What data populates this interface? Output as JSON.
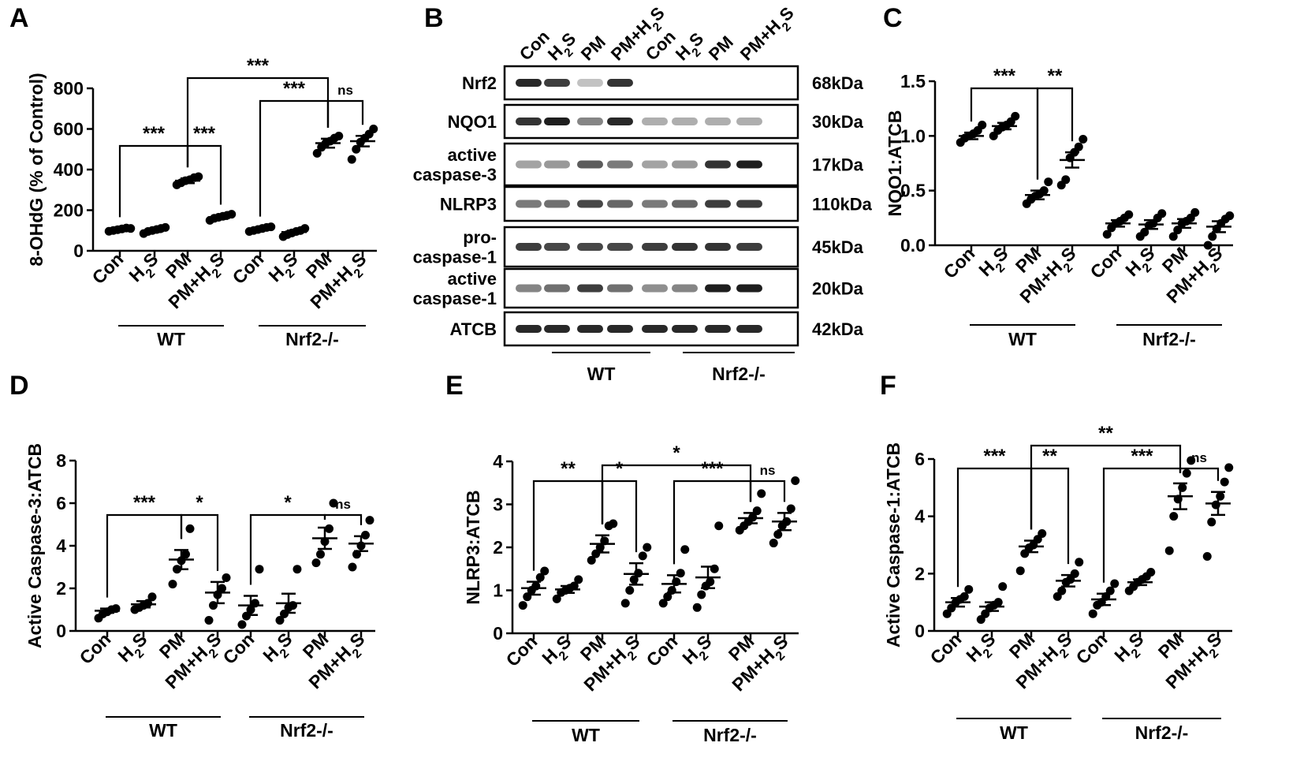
{
  "figure": {
    "groups": [
      "WT",
      "Nrf2-/-"
    ],
    "sample_order": [
      "Con",
      "H2S",
      "PM",
      "PM+H2S",
      "Con",
      "H2S",
      "PM",
      "PM+H2S"
    ]
  },
  "chart_data": [
    {
      "panel": "A",
      "type": "scatter",
      "ylabel": "8-OHdG (% of Control)",
      "ylim": [
        0,
        800
      ],
      "yticks": [
        0,
        200,
        400,
        600,
        800
      ],
      "categories": [
        "Con",
        "H2S",
        "PM",
        "PM+H2S",
        "Con",
        "H2S",
        "PM",
        "PM+H2S"
      ],
      "groups": [
        {
          "label": "WT",
          "from": 0,
          "to": 3
        },
        {
          "label": "Nrf2-/-",
          "from": 4,
          "to": 7
        }
      ],
      "means": [
        105,
        100,
        345,
        165,
        108,
        92,
        530,
        540
      ],
      "sem": [
        6,
        8,
        12,
        8,
        6,
        8,
        22,
        26
      ],
      "points": [
        [
          96,
          100,
          104,
          108,
          112,
          110
        ],
        [
          85,
          95,
          100,
          105,
          110,
          115
        ],
        [
          325,
          335,
          345,
          350,
          360,
          365
        ],
        [
          150,
          160,
          165,
          170,
          175,
          180
        ],
        [
          95,
          100,
          105,
          110,
          115,
          118
        ],
        [
          70,
          80,
          88,
          95,
          100,
          110
        ],
        [
          480,
          510,
          530,
          540,
          555,
          565
        ],
        [
          450,
          500,
          535,
          555,
          575,
          600
        ]
      ],
      "comparisons": [
        {
          "a": 0,
          "b": 2,
          "label": "***",
          "level": 0
        },
        {
          "a": 2,
          "b": 3,
          "label": "***",
          "level": 0
        },
        {
          "a": 4,
          "b": 6,
          "label": "***",
          "level": 1
        },
        {
          "a": 6,
          "b": 7,
          "label": "ns",
          "level": 1
        },
        {
          "a": 2,
          "b": 6,
          "label": "***",
          "level": 2
        }
      ]
    },
    {
      "panel": "C",
      "type": "scatter",
      "ylabel": "NQO1:ATCB",
      "ylim": [
        0,
        1.5
      ],
      "yticks": [
        "0.0",
        "0.5",
        "1.0",
        "1.5"
      ],
      "categories": [
        "Con",
        "H2S",
        "PM",
        "PM+H2S",
        "Con",
        "H2S",
        "PM",
        "PM+H2S"
      ],
      "groups": [
        {
          "label": "WT",
          "from": 0,
          "to": 3
        },
        {
          "label": "Nrf2-/-",
          "from": 4,
          "to": 7
        }
      ],
      "means": [
        1.0,
        1.09,
        0.46,
        0.78,
        0.2,
        0.19,
        0.2,
        0.17
      ],
      "sem": [
        0.03,
        0.03,
        0.04,
        0.07,
        0.03,
        0.04,
        0.04,
        0.05
      ],
      "points": [
        [
          0.94,
          0.98,
          1.0,
          1.02,
          1.05,
          1.1
        ],
        [
          1.0,
          1.05,
          1.08,
          1.1,
          1.13,
          1.18
        ],
        [
          0.38,
          0.42,
          0.45,
          0.47,
          0.5,
          0.58
        ],
        [
          0.55,
          0.6,
          0.8,
          0.85,
          0.9,
          0.97
        ],
        [
          0.1,
          0.16,
          0.2,
          0.22,
          0.25,
          0.28
        ],
        [
          0.08,
          0.12,
          0.18,
          0.2,
          0.25,
          0.29
        ],
        [
          0.08,
          0.14,
          0.2,
          0.22,
          0.25,
          0.3
        ],
        [
          0.0,
          0.08,
          0.15,
          0.2,
          0.24,
          0.27
        ]
      ],
      "comparisons": [
        {
          "a": 0,
          "b": 2,
          "label": "***",
          "level": 0
        },
        {
          "a": 2,
          "b": 3,
          "label": "**",
          "level": 0
        }
      ]
    },
    {
      "panel": "D",
      "type": "scatter",
      "ylabel": "Active Caspase-3:ATCB",
      "ylim": [
        0,
        8
      ],
      "yticks": [
        0,
        2,
        4,
        6,
        8
      ],
      "categories": [
        "Con",
        "H2S",
        "PM",
        "PM+H2S",
        "Con",
        "H2S",
        "PM",
        "PM+H2S"
      ],
      "groups": [
        {
          "label": "WT",
          "from": 0,
          "to": 3
        },
        {
          "label": "Nrf2-/-",
          "from": 4,
          "to": 7
        }
      ],
      "means": [
        0.95,
        1.25,
        3.35,
        1.8,
        1.2,
        1.3,
        4.35,
        4.1
      ],
      "sem": [
        0.1,
        0.15,
        0.45,
        0.5,
        0.45,
        0.45,
        0.5,
        0.35
      ],
      "points": [
        [
          0.6,
          0.8,
          0.9,
          1.0,
          1.05
        ],
        [
          1.0,
          1.1,
          1.2,
          1.3,
          1.6
        ],
        [
          2.2,
          2.9,
          3.3,
          3.6,
          4.8
        ],
        [
          0.5,
          1.2,
          1.7,
          2.0,
          2.5
        ],
        [
          0.3,
          0.7,
          1.0,
          1.3,
          2.9
        ],
        [
          0.5,
          0.8,
          1.1,
          1.2,
          2.9
        ],
        [
          3.2,
          3.6,
          4.2,
          4.8,
          6.0
        ],
        [
          3.0,
          3.6,
          4.0,
          4.5,
          5.2
        ]
      ],
      "comparisons": [
        {
          "a": 0,
          "b": 2,
          "label": "***",
          "level": 0
        },
        {
          "a": 2,
          "b": 3,
          "label": "*",
          "level": 0
        },
        {
          "a": 4,
          "b": 6,
          "label": "*",
          "level": 1
        },
        {
          "a": 6,
          "b": 7,
          "label": "ns",
          "level": 1
        }
      ]
    },
    {
      "panel": "E",
      "type": "scatter",
      "ylabel": "NLRP3:ATCB",
      "ylim": [
        0,
        4
      ],
      "yticks": [
        0,
        1,
        2,
        3,
        4
      ],
      "categories": [
        "Con",
        "H2S",
        "PM",
        "PM+H2S",
        "Con",
        "H2S",
        "PM",
        "PM+H2S"
      ],
      "groups": [
        {
          "label": "WT",
          "from": 0,
          "to": 3
        },
        {
          "label": "Nrf2-/-",
          "from": 4,
          "to": 7
        }
      ],
      "means": [
        1.05,
        1.02,
        2.08,
        1.38,
        1.15,
        1.3,
        2.68,
        2.6
      ],
      "sem": [
        0.15,
        0.08,
        0.2,
        0.25,
        0.2,
        0.25,
        0.12,
        0.2
      ],
      "points": [
        [
          0.65,
          0.85,
          1.0,
          1.1,
          1.3,
          1.45
        ],
        [
          0.8,
          0.95,
          1.0,
          1.05,
          1.1,
          1.25
        ],
        [
          1.7,
          1.85,
          2.0,
          2.15,
          2.5,
          2.55
        ],
        [
          0.7,
          1.0,
          1.25,
          1.4,
          1.8,
          2.0
        ],
        [
          0.7,
          0.85,
          1.0,
          1.2,
          1.4,
          1.95
        ],
        [
          0.6,
          0.9,
          1.1,
          1.2,
          1.5,
          2.5
        ],
        [
          2.4,
          2.5,
          2.6,
          2.7,
          2.85,
          3.25
        ],
        [
          2.1,
          2.3,
          2.5,
          2.6,
          2.9,
          3.55
        ]
      ],
      "comparisons": [
        {
          "a": 0,
          "b": 2,
          "label": "**",
          "level": 0
        },
        {
          "a": 2,
          "b": 3,
          "label": "*",
          "level": 0
        },
        {
          "a": 4,
          "b": 6,
          "label": "***",
          "level": 1
        },
        {
          "a": 6,
          "b": 7,
          "label": "ns",
          "level": 1
        },
        {
          "a": 2,
          "b": 6,
          "label": "*",
          "level": 2
        }
      ]
    },
    {
      "panel": "F",
      "type": "scatter",
      "ylabel": "Active Caspase-1:ATCB",
      "ylim": [
        0,
        6
      ],
      "yticks": [
        0,
        2,
        4,
        6
      ],
      "categories": [
        "Con",
        "H2S",
        "PM",
        "PM+H2S",
        "Con",
        "H2S",
        "PM",
        "PM+H2S"
      ],
      "groups": [
        {
          "label": "WT",
          "from": 0,
          "to": 3
        },
        {
          "label": "Nrf2-/-",
          "from": 4,
          "to": 7
        }
      ],
      "means": [
        1.0,
        0.85,
        2.95,
        1.75,
        1.1,
        1.7,
        4.7,
        4.45
      ],
      "sem": [
        0.15,
        0.15,
        0.2,
        0.2,
        0.2,
        0.1,
        0.45,
        0.4
      ],
      "points": [
        [
          0.6,
          0.8,
          1.0,
          1.1,
          1.2,
          1.45
        ],
        [
          0.4,
          0.6,
          0.8,
          0.9,
          1.0,
          1.55
        ],
        [
          2.1,
          2.7,
          2.9,
          3.0,
          3.2,
          3.4
        ],
        [
          1.2,
          1.4,
          1.7,
          1.8,
          2.0,
          2.4
        ],
        [
          0.6,
          0.9,
          1.0,
          1.2,
          1.4,
          1.65
        ],
        [
          1.4,
          1.55,
          1.7,
          1.8,
          1.9,
          2.05
        ],
        [
          2.8,
          4.0,
          4.6,
          5.0,
          5.5,
          5.95
        ],
        [
          2.6,
          3.8,
          4.4,
          4.7,
          5.2,
          5.7
        ]
      ],
      "comparisons": [
        {
          "a": 0,
          "b": 2,
          "label": "***",
          "level": 0
        },
        {
          "a": 2,
          "b": 3,
          "label": "**",
          "level": 0
        },
        {
          "a": 4,
          "b": 6,
          "label": "***",
          "level": 1
        },
        {
          "a": 6,
          "b": 7,
          "label": "ns",
          "level": 1
        },
        {
          "a": 2,
          "b": 6,
          "label": "**",
          "level": 2
        }
      ]
    }
  ],
  "western_blot": {
    "panel": "B",
    "lanes": [
      "Con",
      "H2S",
      "PM",
      "PM+H2S",
      "Con",
      "H2S",
      "PM",
      "PM+H2S"
    ],
    "groups": [
      {
        "label": "WT",
        "from": 0,
        "to": 3
      },
      {
        "label": "Nrf2-/-",
        "from": 4,
        "to": 7
      }
    ],
    "rows": [
      {
        "name": "Nrf2",
        "kda": "68kDa",
        "intensity": [
          0.95,
          0.85,
          0.2,
          0.9,
          0.0,
          0.0,
          0.0,
          0.0
        ]
      },
      {
        "name": "NQO1",
        "kda": "30kDa",
        "intensity": [
          0.9,
          1.0,
          0.5,
          0.95,
          0.3,
          0.3,
          0.3,
          0.3
        ]
      },
      {
        "name": "active\ncaspase-3",
        "kda": "17kDa",
        "intensity": [
          0.35,
          0.4,
          0.7,
          0.55,
          0.35,
          0.4,
          0.9,
          1.0
        ]
      },
      {
        "name": "NLRP3",
        "kda": "110kDa",
        "intensity": [
          0.55,
          0.6,
          0.8,
          0.65,
          0.55,
          0.65,
          0.85,
          0.85
        ]
      },
      {
        "name": "pro-\ncaspase-1",
        "kda": "45kDa",
        "intensity": [
          0.85,
          0.8,
          0.8,
          0.8,
          0.85,
          0.9,
          0.9,
          0.85
        ]
      },
      {
        "name": "active\ncaspase-1",
        "kda": "20kDa",
        "intensity": [
          0.5,
          0.6,
          0.85,
          0.6,
          0.45,
          0.5,
          1.0,
          1.0
        ]
      },
      {
        "name": "ATCB",
        "kda": "42kDa",
        "intensity": [
          0.95,
          0.95,
          0.95,
          0.95,
          0.95,
          0.95,
          0.95,
          0.95
        ]
      }
    ]
  }
}
